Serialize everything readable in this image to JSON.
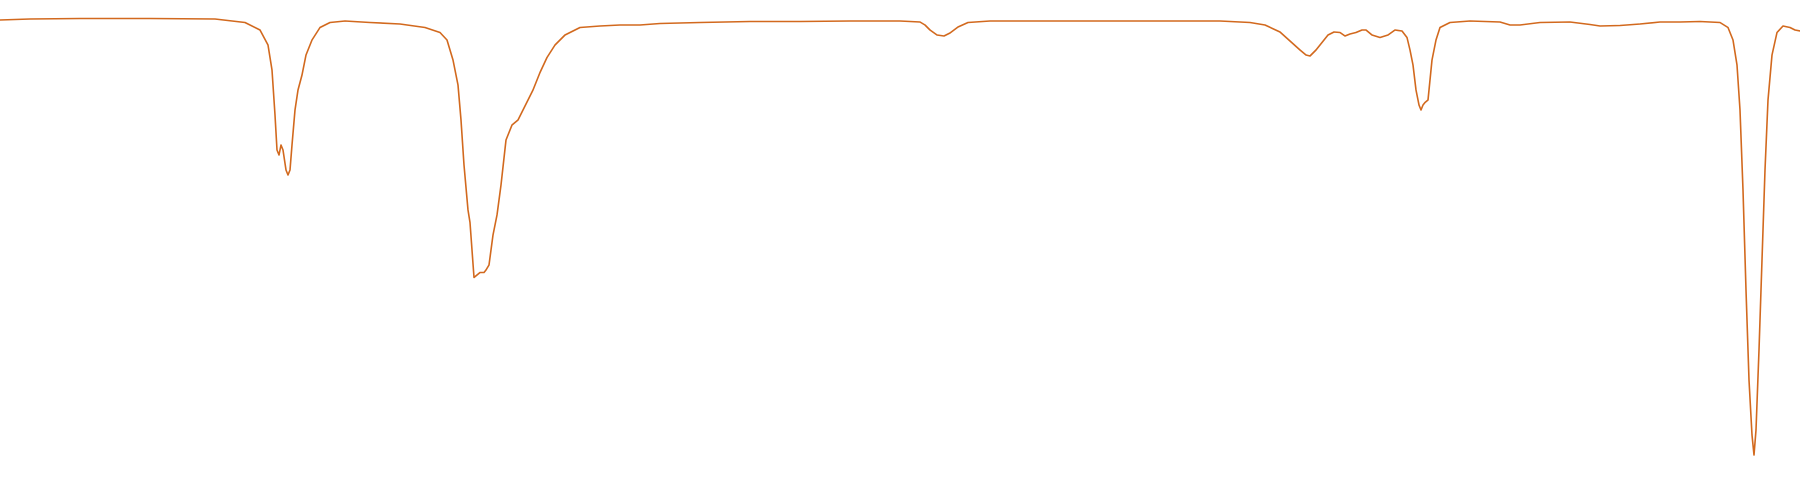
{
  "chart_data": {
    "type": "line",
    "title": "",
    "xlabel": "",
    "ylabel": "",
    "xlim": [
      0,
      1800
    ],
    "ylim": [
      0,
      1
    ],
    "grid": false,
    "legend": "none",
    "series": [
      {
        "color": "#d2691e",
        "points": [
          [
            0,
            0.96
          ],
          [
            30,
            0.962
          ],
          [
            80,
            0.963
          ],
          [
            150,
            0.963
          ],
          [
            215,
            0.962
          ],
          [
            245,
            0.955
          ],
          [
            260,
            0.94
          ],
          [
            268,
            0.91
          ],
          [
            272,
            0.86
          ],
          [
            275,
            0.77
          ],
          [
            277,
            0.7
          ],
          [
            279,
            0.69
          ],
          [
            281,
            0.71
          ],
          [
            283,
            0.7
          ],
          [
            286,
            0.66
          ],
          [
            288,
            0.65
          ],
          [
            290,
            0.66
          ],
          [
            292,
            0.71
          ],
          [
            295,
            0.78
          ],
          [
            298,
            0.82
          ],
          [
            302,
            0.85
          ],
          [
            306,
            0.89
          ],
          [
            312,
            0.92
          ],
          [
            320,
            0.945
          ],
          [
            330,
            0.955
          ],
          [
            345,
            0.958
          ],
          [
            370,
            0.955
          ],
          [
            400,
            0.952
          ],
          [
            425,
            0.945
          ],
          [
            440,
            0.935
          ],
          [
            447,
            0.92
          ],
          [
            453,
            0.88
          ],
          [
            458,
            0.83
          ],
          [
            461,
            0.76
          ],
          [
            464,
            0.67
          ],
          [
            468,
            0.58
          ],
          [
            470,
            0.555
          ],
          [
            472,
            0.5
          ],
          [
            474,
            0.445
          ],
          [
            477,
            0.45
          ],
          [
            480,
            0.455
          ],
          [
            484,
            0.455
          ],
          [
            486,
            0.46
          ],
          [
            489,
            0.47
          ],
          [
            493,
            0.53
          ],
          [
            497,
            0.57
          ],
          [
            501,
            0.63
          ],
          [
            506,
            0.72
          ],
          [
            512,
            0.75
          ],
          [
            518,
            0.76
          ],
          [
            523,
            0.78
          ],
          [
            528,
            0.8
          ],
          [
            533,
            0.82
          ],
          [
            540,
            0.855
          ],
          [
            547,
            0.885
          ],
          [
            555,
            0.91
          ],
          [
            565,
            0.93
          ],
          [
            580,
            0.945
          ],
          [
            600,
            0.948
          ],
          [
            620,
            0.95
          ],
          [
            640,
            0.95
          ],
          [
            660,
            0.953
          ],
          [
            700,
            0.955
          ],
          [
            750,
            0.957
          ],
          [
            800,
            0.957
          ],
          [
            850,
            0.958
          ],
          [
            900,
            0.958
          ],
          [
            920,
            0.956
          ],
          [
            925,
            0.95
          ],
          [
            930,
            0.94
          ],
          [
            937,
            0.93
          ],
          [
            944,
            0.928
          ],
          [
            950,
            0.934
          ],
          [
            958,
            0.946
          ],
          [
            968,
            0.955
          ],
          [
            990,
            0.958
          ],
          [
            1050,
            0.958
          ],
          [
            1150,
            0.958
          ],
          [
            1220,
            0.958
          ],
          [
            1250,
            0.955
          ],
          [
            1265,
            0.95
          ],
          [
            1280,
            0.936
          ],
          [
            1290,
            0.918
          ],
          [
            1300,
            0.9
          ],
          [
            1306,
            0.89
          ],
          [
            1310,
            0.888
          ],
          [
            1316,
            0.9
          ],
          [
            1322,
            0.915
          ],
          [
            1328,
            0.93
          ],
          [
            1334,
            0.936
          ],
          [
            1340,
            0.935
          ],
          [
            1345,
            0.928
          ],
          [
            1350,
            0.932
          ],
          [
            1356,
            0.935
          ],
          [
            1362,
            0.94
          ],
          [
            1366,
            0.94
          ],
          [
            1372,
            0.93
          ],
          [
            1380,
            0.925
          ],
          [
            1388,
            0.93
          ],
          [
            1395,
            0.94
          ],
          [
            1402,
            0.938
          ],
          [
            1407,
            0.925
          ],
          [
            1410,
            0.9
          ],
          [
            1413,
            0.87
          ],
          [
            1416,
            0.82
          ],
          [
            1419,
            0.79
          ],
          [
            1421,
            0.78
          ],
          [
            1423,
            0.79
          ],
          [
            1425,
            0.795
          ],
          [
            1428,
            0.8
          ],
          [
            1430,
            0.84
          ],
          [
            1432,
            0.88
          ],
          [
            1436,
            0.92
          ],
          [
            1440,
            0.945
          ],
          [
            1450,
            0.955
          ],
          [
            1470,
            0.958
          ],
          [
            1500,
            0.956
          ],
          [
            1510,
            0.95
          ],
          [
            1520,
            0.95
          ],
          [
            1540,
            0.955
          ],
          [
            1570,
            0.956
          ],
          [
            1590,
            0.951
          ],
          [
            1600,
            0.948
          ],
          [
            1620,
            0.949
          ],
          [
            1640,
            0.952
          ],
          [
            1660,
            0.956
          ],
          [
            1680,
            0.956
          ],
          [
            1700,
            0.957
          ],
          [
            1720,
            0.955
          ],
          [
            1728,
            0.945
          ],
          [
            1733,
            0.92
          ],
          [
            1737,
            0.87
          ],
          [
            1740,
            0.78
          ],
          [
            1743,
            0.62
          ],
          [
            1746,
            0.42
          ],
          [
            1749,
            0.24
          ],
          [
            1752,
            0.13
          ],
          [
            1754,
            0.09
          ],
          [
            1756,
            0.14
          ],
          [
            1759,
            0.3
          ],
          [
            1762,
            0.48
          ],
          [
            1765,
            0.66
          ],
          [
            1768,
            0.8
          ],
          [
            1772,
            0.89
          ],
          [
            1777,
            0.935
          ],
          [
            1783,
            0.948
          ],
          [
            1790,
            0.945
          ],
          [
            1795,
            0.94
          ],
          [
            1800,
            0.938
          ]
        ]
      }
    ]
  }
}
